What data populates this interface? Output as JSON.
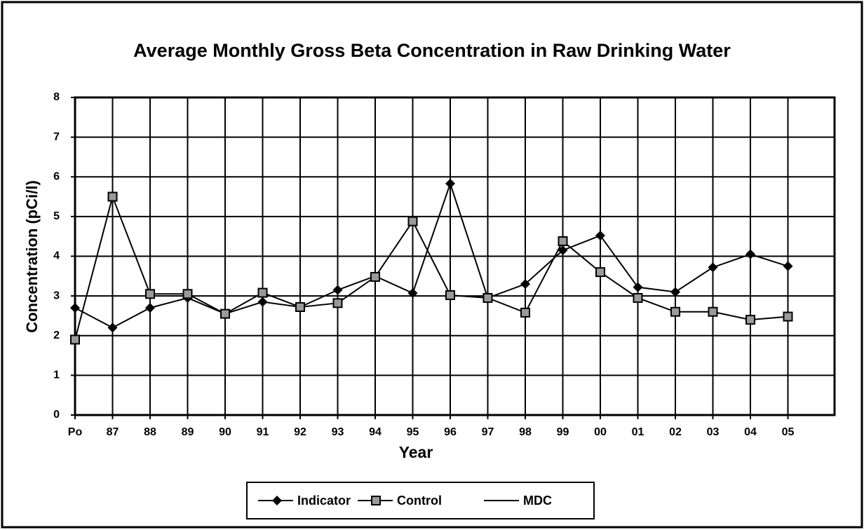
{
  "chart_data": {
    "type": "line",
    "title": "Average Monthly Gross Beta Concentration in Raw Drinking Water",
    "x_label": "Year",
    "y_label": "Concentration (pCi/l)",
    "categories": [
      "Po",
      "87",
      "88",
      "89",
      "90",
      "91",
      "92",
      "93",
      "94",
      "95",
      "96",
      "97",
      "98",
      "99",
      "00",
      "01",
      "02",
      "03",
      "04",
      "05"
    ],
    "series": [
      {
        "name": "Indicator",
        "color": "#000000",
        "marker": "diamond",
        "values": [
          2.7,
          2.2,
          2.7,
          2.95,
          2.55,
          2.85,
          2.72,
          3.15,
          3.5,
          3.07,
          5.83,
          2.95,
          3.3,
          4.15,
          4.52,
          3.22,
          3.1,
          3.72,
          4.05,
          3.75
        ]
      },
      {
        "name": "Control",
        "color": "#000000",
        "marker": "square",
        "values": [
          1.9,
          5.5,
          3.05,
          3.05,
          2.55,
          3.08,
          2.72,
          2.82,
          3.48,
          4.88,
          3.02,
          2.95,
          2.58,
          4.38,
          3.6,
          2.95,
          2.6,
          2.6,
          2.4,
          2.48
        ]
      },
      {
        "name": "MDC",
        "color": "#000000",
        "marker": "none",
        "values": [
          null,
          null,
          null,
          null,
          null,
          null,
          null,
          null,
          null,
          null,
          null,
          null,
          null,
          null,
          null,
          null,
          null,
          null,
          null,
          null
        ]
      }
    ],
    "ylim": [
      0,
      8
    ],
    "yticks": [
      0,
      1,
      2,
      3,
      4,
      5,
      6,
      7,
      8
    ],
    "grid": true,
    "legend": "bottom"
  }
}
